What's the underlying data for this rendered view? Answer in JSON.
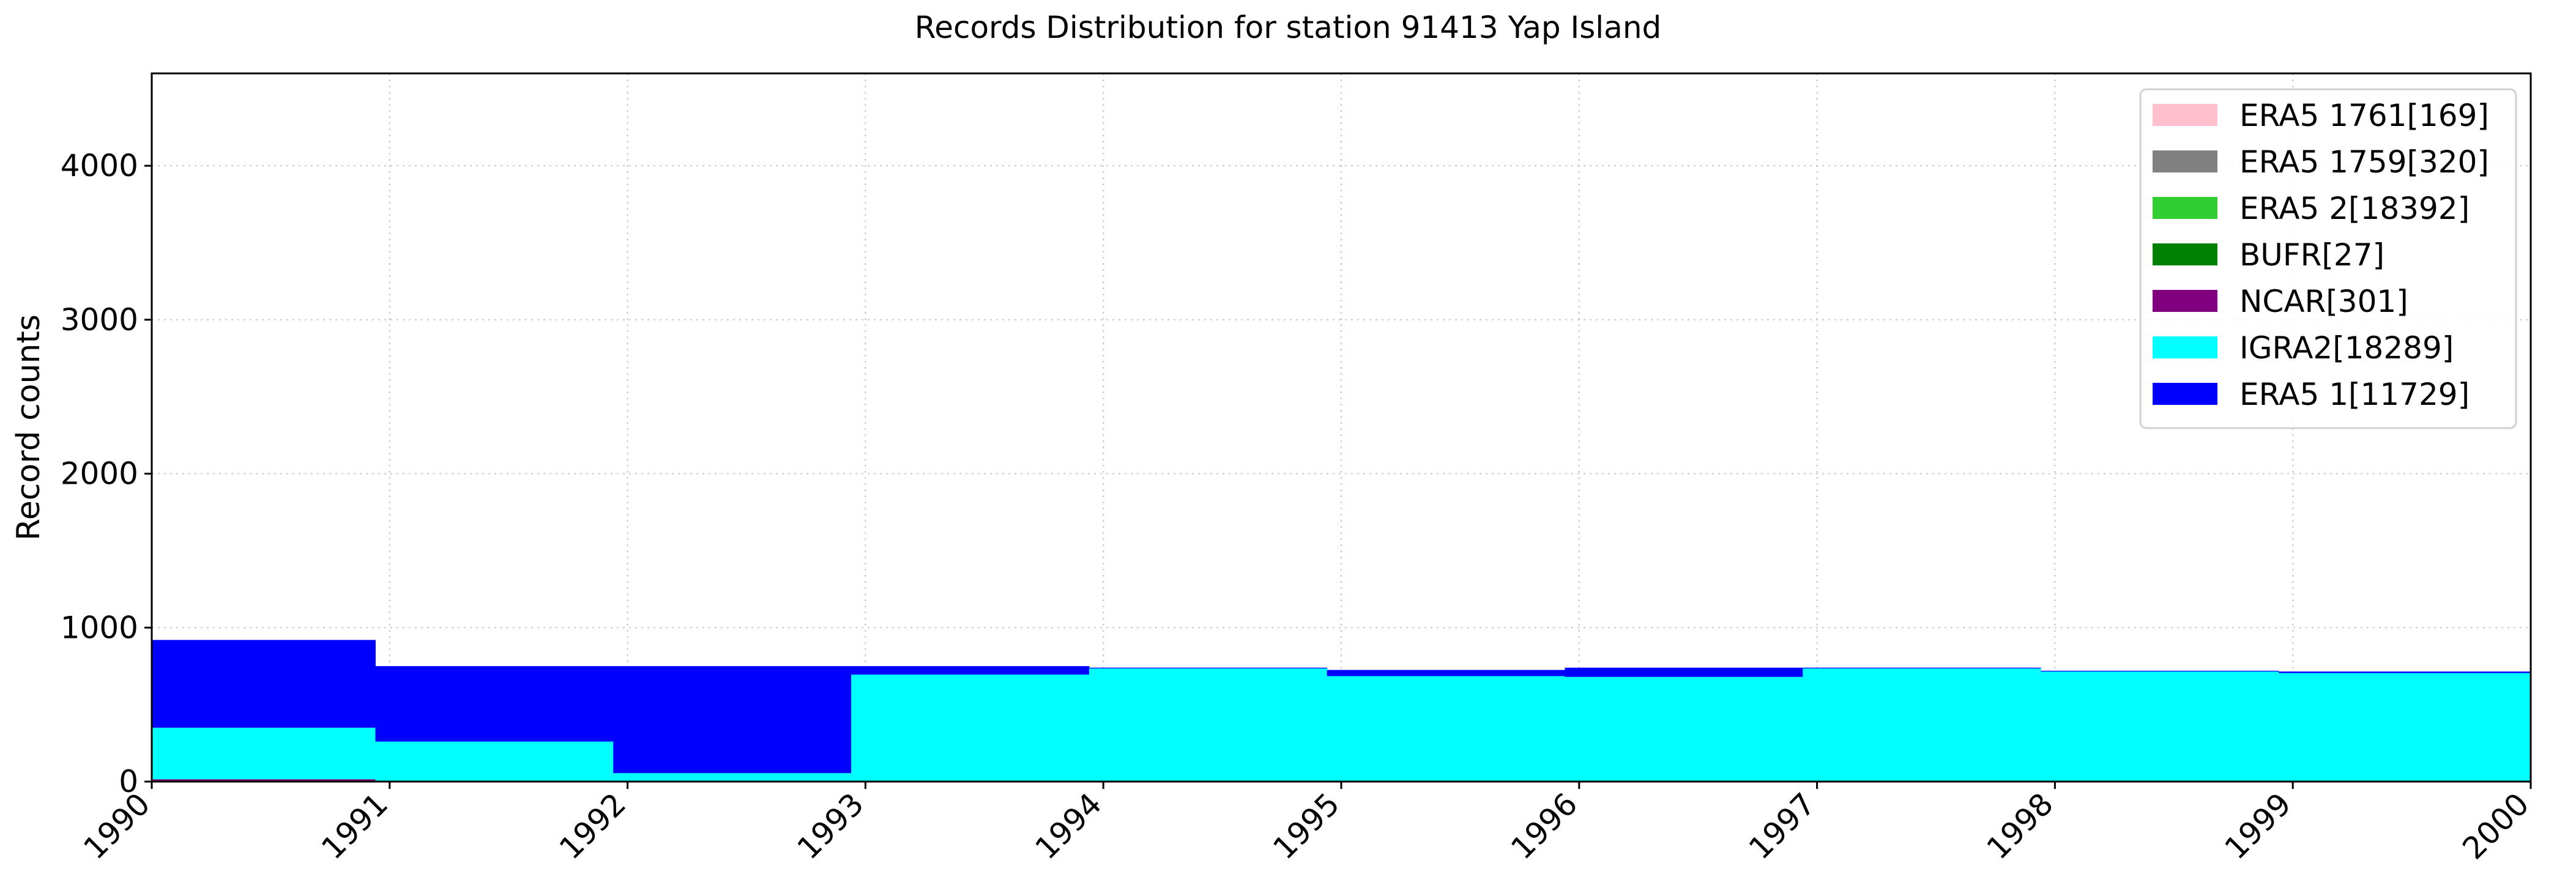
{
  "chart_data": {
    "type": "area",
    "title": "Records Distribution for station 91413 Yap Island",
    "xlabel": "",
    "ylabel": "Record counts",
    "xlim": [
      1990,
      2000
    ],
    "ylim": [
      0,
      4600
    ],
    "x_ticks": [
      "1990",
      "1991",
      "1992",
      "1993",
      "1994",
      "1995",
      "1996",
      "1997",
      "1998",
      "1999",
      "2000"
    ],
    "y_ticks": [
      0,
      1000,
      2000,
      3000,
      4000
    ],
    "y_tick_labels": [
      "0",
      "1000",
      "2000",
      "3000",
      "4000"
    ],
    "grid": true,
    "stacked": true,
    "legend_position": "top-right",
    "legend": [
      {
        "label": "ERA5 1761[169]",
        "color": "#ffc0cb"
      },
      {
        "label": "ERA5 1759[320]",
        "color": "#808080"
      },
      {
        "label": "ERA5 2[18392]",
        "color": "#32cd32"
      },
      {
        "label": "BUFR[27]",
        "color": "#008000"
      },
      {
        "label": "NCAR[301]",
        "color": "#800080"
      },
      {
        "label": "IGRA2[18289]",
        "color": "#00ffff"
      },
      {
        "label": "ERA5 1[11729]",
        "color": "#0000ff"
      }
    ],
    "bins": [
      [
        1990.0,
        1990.94
      ],
      [
        1990.94,
        1991.94
      ],
      [
        1991.94,
        1992.94
      ],
      [
        1992.94,
        1993.94
      ],
      [
        1993.94,
        1994.94
      ],
      [
        1994.94,
        1995.94
      ],
      [
        1995.94,
        1996.94
      ],
      [
        1996.94,
        1997.94
      ],
      [
        1997.94,
        1998.94
      ],
      [
        1998.94,
        2000.0
      ]
    ],
    "series": [
      {
        "color": "#800080",
        "values": [
          15,
          5,
          0,
          0,
          0,
          0,
          0,
          0,
          0,
          0
        ]
      },
      {
        "color": "#00ffff",
        "values": [
          335,
          255,
          55,
          695,
          735,
          685,
          680,
          735,
          715,
          705
        ]
      },
      {
        "color": "#0000ff",
        "values": [
          570,
          490,
          695,
          55,
          5,
          40,
          60,
          5,
          5,
          10
        ]
      }
    ]
  }
}
